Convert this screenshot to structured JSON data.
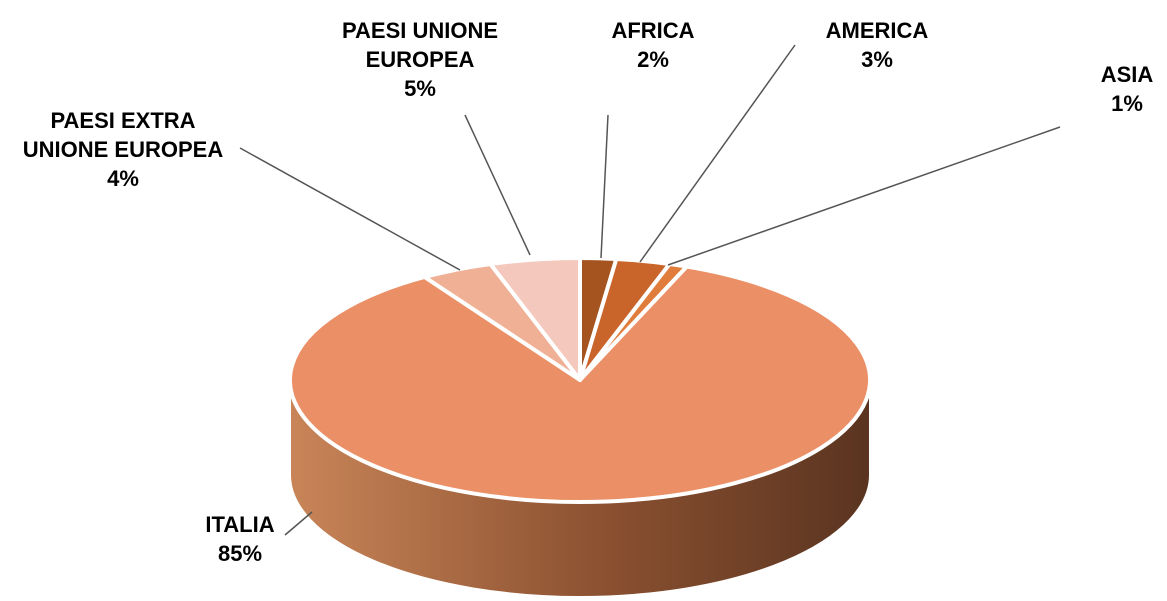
{
  "chart_data": {
    "type": "pie",
    "categories": [
      "AFRICA",
      "AMERICA",
      "ASIA",
      "ITALIA",
      "PAESI EXTRA UNIONE EUROPEA",
      "PAESI UNIONE EUROPEA"
    ],
    "values": [
      2,
      3,
      1,
      85,
      4,
      5
    ],
    "value_labels": [
      "2%",
      "3%",
      "1%",
      "85%",
      "4%",
      "5%"
    ],
    "colors": [
      "#a5541f",
      "#c9652a",
      "#e07d3c",
      "#eb9066",
      "#efb096",
      "#f4c8bc"
    ]
  }
}
